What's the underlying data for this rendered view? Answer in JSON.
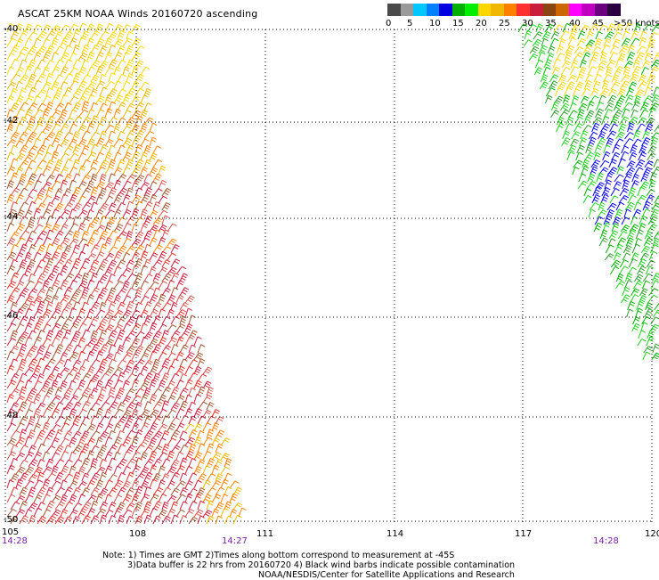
{
  "title": "ASCAT 25KM NOAA Winds 20160720 ascending",
  "legend": {
    "colors": [
      "#4a4a4a",
      "#9a9a9a",
      "#00c8ff",
      "#0080ff",
      "#0000e0",
      "#00b000",
      "#00ee00",
      "#ffd700",
      "#f0b800",
      "#ff8000",
      "#ff3030",
      "#c81e3c",
      "#8b4513",
      "#cc6600",
      "#ff00ff",
      "#c000c0",
      "#6a0080",
      "#2a0040"
    ],
    "labels": [
      "0",
      "5",
      "10",
      "15",
      "20",
      "25",
      "30",
      "35",
      "40",
      "45",
      ">50 knots"
    ]
  },
  "x_ticks": [
    "105",
    "108",
    "111",
    "114",
    "117",
    "120"
  ],
  "y_ticks": [
    "-40",
    "-42",
    "-44",
    "-46",
    "-48",
    "-50"
  ],
  "times": {
    "left": "14:28",
    "mid": "14:27",
    "right": "14:28"
  },
  "notes": {
    "line1": "Note: 1) Times are GMT 2)Times along bottom correspond to measurement at -45S",
    "line2": "3)Data buffer is 22 hrs from 20160720 4) Black wind barbs indicate possible contamination",
    "line3": "NOAA/NESDIS/Center for Satellite Applications and Research"
  },
  "swaths": [
    {
      "name": "west-swath",
      "dominant_speed_knots": "25-40",
      "colors": [
        "#ffd700",
        "#f0b800",
        "#ff8000",
        "#e0302a",
        "#c81e3c",
        "#d4504a",
        "#a0522d"
      ]
    },
    {
      "name": "east-swath",
      "dominant_speed_knots": "15-25",
      "colors": [
        "#00b000",
        "#1fd01f",
        "#0000e0",
        "#ffd700",
        "#2a9a2a"
      ]
    }
  ]
}
